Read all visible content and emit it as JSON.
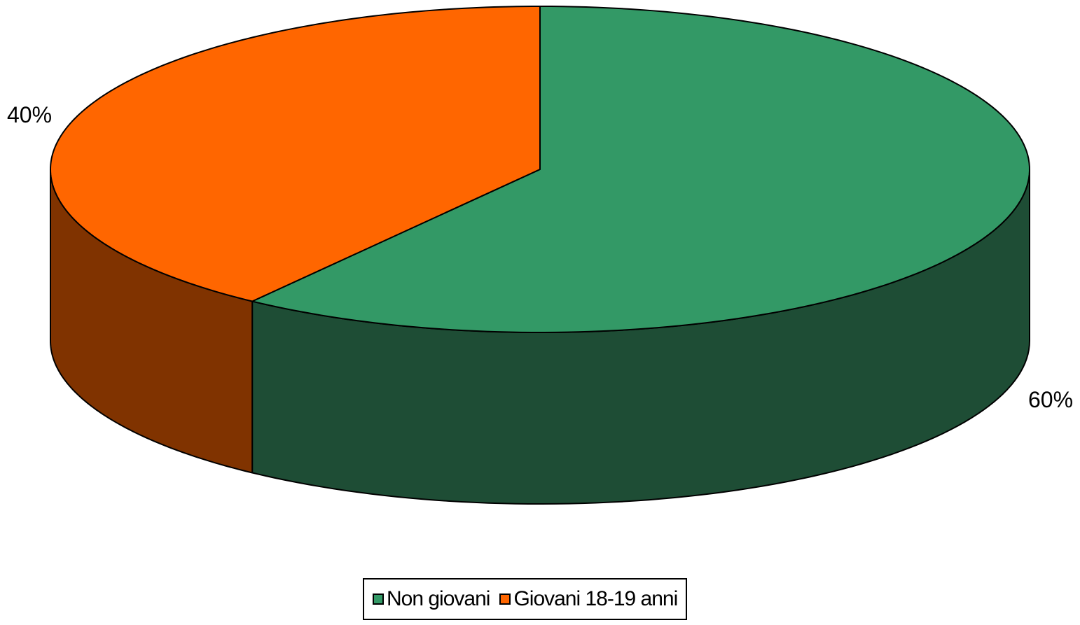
{
  "chart_data": {
    "type": "pie",
    "title": "",
    "style": "3d",
    "categories": [
      "Non giovani",
      "Giovani 18-19 anni"
    ],
    "values": [
      60,
      40
    ],
    "data_labels": [
      "60%",
      "40%"
    ],
    "legend": {
      "placement": "bottom",
      "entries": [
        "Non giovani",
        "Giovani 18-19 anni"
      ]
    },
    "colors": {
      "Non giovani": {
        "top": "#339966",
        "side": "#1e4d35"
      },
      "Giovani 18-19 anni": {
        "top": "#ff6600",
        "side": "#803300"
      }
    }
  }
}
